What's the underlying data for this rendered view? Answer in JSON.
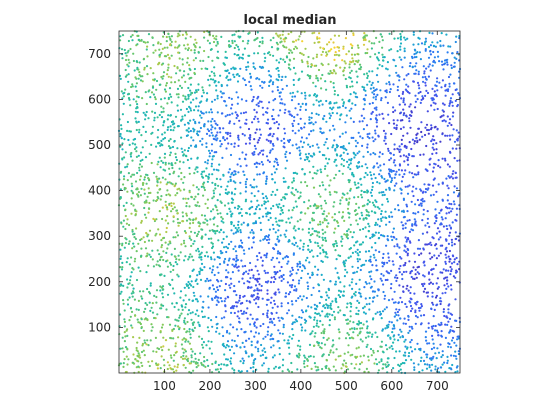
{
  "chart_data": {
    "type": "scatter",
    "title": "local median",
    "xlabel": "",
    "ylabel": "",
    "xlim": [
      0,
      750
    ],
    "ylim": [
      0,
      750
    ],
    "xticks": [
      100,
      200,
      300,
      400,
      500,
      600,
      700
    ],
    "yticks": [
      100,
      200,
      300,
      400,
      500,
      600,
      700
    ],
    "xtick_labels": [
      "100",
      "200",
      "300",
      "400",
      "500",
      "600",
      "700"
    ],
    "ytick_labels": [
      "100",
      "200",
      "300",
      "400",
      "500",
      "600",
      "700"
    ],
    "grid": false,
    "axis_box": true,
    "colormap": "parula",
    "colors": {
      "low": "#3e26a8",
      "mid_low": "#2a7ef3",
      "mid": "#1ab0c5",
      "mid_high": "#7bc95c",
      "high": "#f2cb37",
      "peak": "#f9fb0e",
      "axis": "#262626"
    },
    "point_count_approx": 5000,
    "field_regions": [
      {
        "x": 320,
        "y": 180,
        "level": "low"
      },
      {
        "x": 300,
        "y": 560,
        "level": "low"
      },
      {
        "x": 640,
        "y": 520,
        "level": "low"
      },
      {
        "x": 660,
        "y": 220,
        "level": "low"
      },
      {
        "x": 120,
        "y": 350,
        "level": "high"
      },
      {
        "x": 470,
        "y": 360,
        "level": "high"
      },
      {
        "x": 100,
        "y": 30,
        "level": "high"
      },
      {
        "x": 470,
        "y": 50,
        "level": "high"
      },
      {
        "x": 440,
        "y": 730,
        "level": "peak"
      },
      {
        "x": 150,
        "y": 690,
        "level": "high"
      }
    ]
  }
}
